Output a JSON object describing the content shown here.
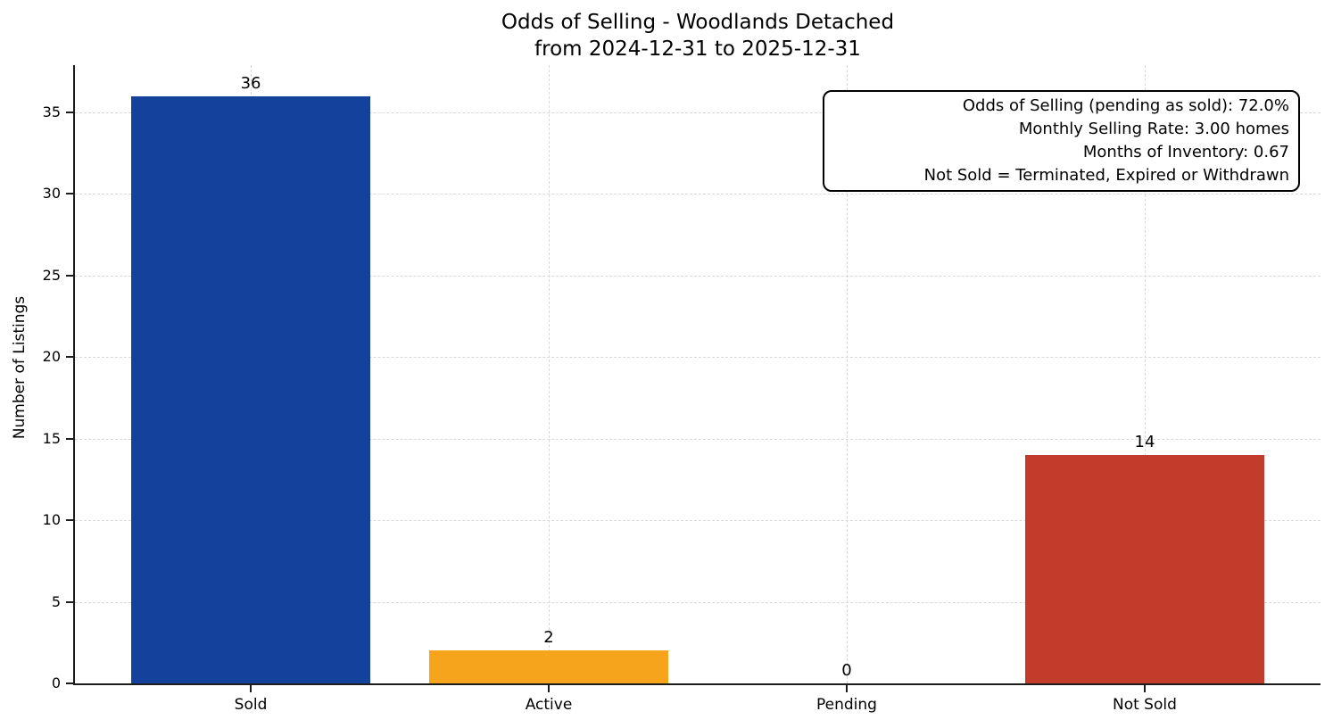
{
  "chart_data": {
    "type": "bar",
    "title": "Odds of Selling - Woodlands Detached",
    "subtitle": "from 2024-12-31 to 2025-12-31",
    "categories": [
      "Sold",
      "Active",
      "Pending",
      "Not Sold"
    ],
    "values": [
      36,
      2,
      0,
      14
    ],
    "bar_colors": [
      "#14419c",
      "#f5a41c",
      "#808080",
      "#c23b2b"
    ],
    "value_label_color": "#000000",
    "xlabel": "",
    "ylabel": "Number of Listings",
    "yticks": [
      0,
      5,
      10,
      15,
      20,
      25,
      30,
      35
    ],
    "ylim": [
      0,
      37.9
    ],
    "xlim": [
      -0.59,
      3.59
    ],
    "bar_width_fraction": 0.8,
    "grid": "both, dashed, light-gray",
    "grid_color": "#d9d9d9",
    "spine_color": "#1c1c1c",
    "legend": "none",
    "annotation_lines": [
      "Odds of Selling (pending as sold): 72.0%",
      "Monthly Selling Rate: 3.00 homes",
      "Months of Inventory: 0.67",
      "Not Sold = Terminated, Expired or Withdrawn"
    ]
  }
}
